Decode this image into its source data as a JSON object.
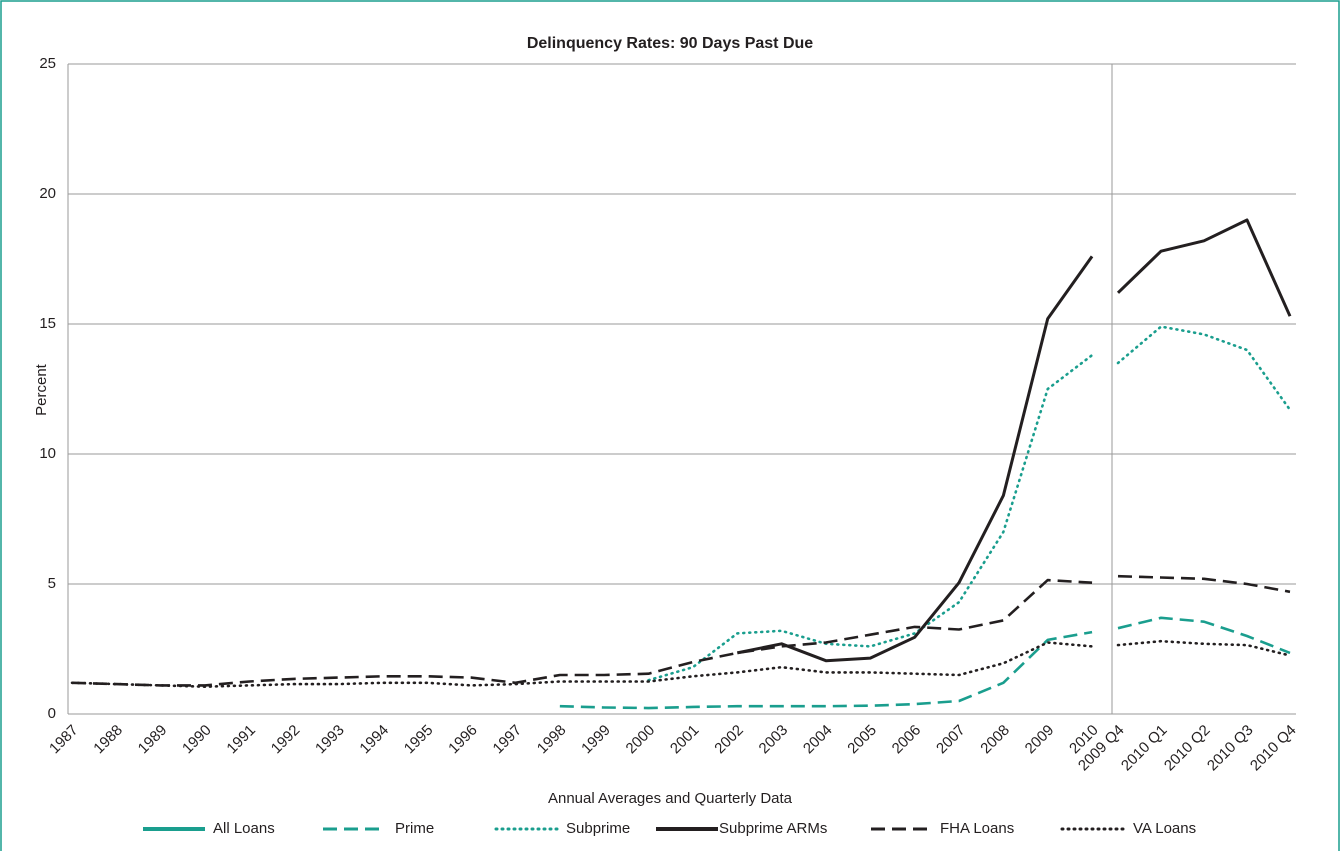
{
  "chart_data": [
    {
      "type": "line",
      "title": "Delinquency Rates: 90 Days Past Due",
      "ylabel": "Percent",
      "xlabel": "Annual Averages and Quarterly Data",
      "categories": [
        "1987",
        "1988",
        "1989",
        "1990",
        "1991",
        "1992",
        "1993",
        "1994",
        "1995",
        "1996",
        "1997",
        "1998",
        "1999",
        "2000",
        "2001",
        "2002",
        "2003",
        "2004",
        "2005",
        "2006",
        "2007",
        "2008",
        "2009",
        "2010"
      ],
      "series": [
        {
          "name": "All Loans",
          "color": "#1a9e8e",
          "dash": "solid",
          "values": [
            null,
            null,
            null,
            null,
            null,
            null,
            null,
            null,
            null,
            null,
            null,
            null,
            null,
            null,
            null,
            null,
            null,
            null,
            null,
            null,
            null,
            null,
            null,
            null
          ]
        },
        {
          "name": "Prime",
          "color": "#1a9e8e",
          "dash": "dashed",
          "values": [
            null,
            null,
            null,
            null,
            null,
            null,
            null,
            null,
            null,
            null,
            null,
            0.3,
            0.25,
            0.23,
            0.27,
            0.3,
            0.3,
            0.3,
            0.32,
            0.38,
            0.5,
            1.2,
            2.85,
            3.15
          ]
        },
        {
          "name": "Subprime",
          "color": "#1a9e8e",
          "dash": "dotted",
          "values": [
            null,
            null,
            null,
            null,
            null,
            null,
            null,
            null,
            null,
            null,
            null,
            null,
            null,
            1.3,
            1.8,
            3.1,
            3.2,
            2.7,
            2.6,
            3.1,
            4.3,
            7.0,
            12.5,
            13.8
          ]
        },
        {
          "name": "Subprime ARMs",
          "color": "#231f20",
          "dash": "solid",
          "values": [
            null,
            null,
            null,
            null,
            null,
            null,
            null,
            null,
            null,
            null,
            null,
            null,
            null,
            null,
            null,
            2.35,
            2.7,
            2.05,
            2.15,
            2.95,
            5.05,
            8.4,
            15.2,
            17.6
          ]
        },
        {
          "name": "FHA Loans",
          "color": "#231f20",
          "dash": "dashed",
          "values": [
            1.2,
            1.15,
            1.1,
            1.1,
            1.25,
            1.35,
            1.4,
            1.45,
            1.45,
            1.4,
            1.2,
            1.5,
            1.5,
            1.55,
            2.0,
            2.35,
            2.6,
            2.75,
            3.05,
            3.35,
            3.25,
            3.6,
            5.15,
            5.05
          ]
        },
        {
          "name": "VA Loans",
          "color": "#231f20",
          "dash": "dotted",
          "values": [
            1.2,
            1.15,
            1.1,
            1.05,
            1.1,
            1.15,
            1.15,
            1.2,
            1.2,
            1.1,
            1.15,
            1.25,
            1.25,
            1.25,
            1.45,
            1.6,
            1.8,
            1.6,
            1.6,
            1.55,
            1.5,
            1.95,
            2.75,
            2.6
          ]
        }
      ],
      "ylim": [
        0,
        25
      ],
      "yticks": [
        0,
        5,
        10,
        15,
        20,
        25
      ],
      "grid": true,
      "legend": "bottom"
    },
    {
      "type": "line",
      "categories": [
        "2009 Q4",
        "2010 Q1",
        "2010 Q2",
        "2010 Q3",
        "2010 Q4"
      ],
      "series": [
        {
          "color": "#1a9e8e",
          "dash": "solid",
          "values": [
            null,
            null,
            null,
            null,
            null
          ]
        },
        {
          "color": "#1a9e8e",
          "dash": "dashed",
          "values": [
            3.3,
            3.7,
            3.55,
            3.0,
            2.35
          ]
        },
        {
          "color": "#1a9e8e",
          "dash": "dotted",
          "values": [
            13.5,
            14.9,
            14.6,
            14.0,
            11.7
          ]
        },
        {
          "color": "#231f20",
          "dash": "solid",
          "values": [
            16.2,
            17.8,
            18.2,
            19.0,
            15.3
          ]
        },
        {
          "color": "#231f20",
          "dash": "dashed",
          "values": [
            5.3,
            5.25,
            5.2,
            5.0,
            4.7
          ]
        },
        {
          "color": "#231f20",
          "dash": "dotted",
          "values": [
            2.65,
            2.8,
            2.7,
            2.65,
            2.25
          ]
        }
      ],
      "ylim": [
        0,
        25
      ],
      "yticks": [
        0,
        5,
        10,
        15,
        20,
        25
      ],
      "grid": true
    }
  ]
}
